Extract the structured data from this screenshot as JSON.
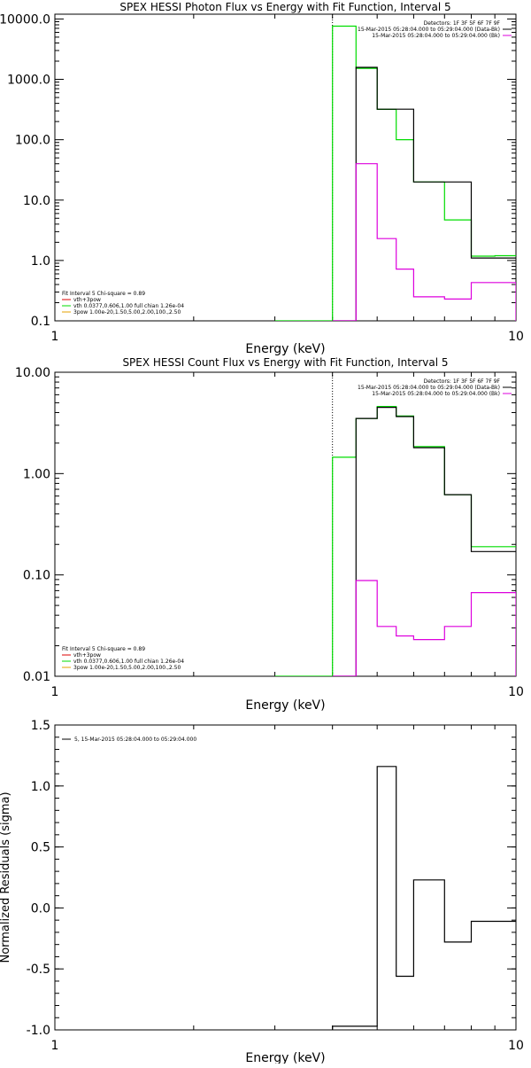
{
  "colors": {
    "black": "#000000",
    "green": "#00dd00",
    "magenta": "#dd00dd",
    "red": "#dd0000",
    "orange": "#e6a000"
  },
  "chart_data": [
    {
      "id": "photon",
      "type": "line",
      "title": "SPEX HESSI Photon Flux vs Energy with Fit Function, Interval 5",
      "xlabel": "Energy (keV)",
      "ylabel": "",
      "xscale": "log",
      "yscale": "log",
      "xlim": [
        1,
        10
      ],
      "ylim": [
        0.1,
        12000
      ],
      "xticks": [
        {
          "v": 1,
          "label": "1"
        },
        {
          "v": 10,
          "label": "10"
        }
      ],
      "yticks": [
        {
          "v": 0.1,
          "label": "0.1"
        },
        {
          "v": 1,
          "label": "1.0"
        },
        {
          "v": 10,
          "label": "10.0"
        },
        {
          "v": 100,
          "label": "100.0"
        },
        {
          "v": 1000,
          "label": "1000.0"
        },
        {
          "v": 10000,
          "label": "10000.0"
        }
      ],
      "vline": 4,
      "legend_top_right": [
        {
          "text": "Detectors: 1F 3F 5F 6F 7F 9F",
          "color": "",
          "line": false
        },
        {
          "text": "15-Mar-2015 05:28:04.000 to 05:29:04.000 (Data-Bk)",
          "color": "black",
          "line": true
        },
        {
          "text": "15-Mar-2015 05:28:04.000 to 05:29:04.000 (Bk)",
          "color": "magenta",
          "line": true
        }
      ],
      "legend_bottom_left": [
        {
          "text": "Fit Interval 5   Chi-square = 0.89",
          "color": "",
          "line": false
        },
        {
          "text": "vth+3pow",
          "color": "red",
          "line": true
        },
        {
          "text": "vth 0.0377,0.606,1.00  full chian 1.26e-04",
          "color": "green",
          "line": true
        },
        {
          "text": "3pow 1.00e-20,1.50,5.00,2.00,100.,2.50",
          "color": "orange",
          "line": true
        }
      ],
      "series": [
        {
          "color": "green",
          "x": [
            3,
            4,
            4.5,
            5,
            5.5,
            6,
            7,
            8,
            9,
            10
          ],
          "y": [
            0.1,
            7600,
            1520,
            318,
            100,
            20,
            4.7,
            1.18,
            1.2,
            1.2
          ]
        },
        {
          "color": "black",
          "x": [
            4,
            4.5,
            5,
            5.5,
            6,
            7,
            8,
            9,
            10
          ],
          "y": [
            0.1,
            1580,
            320,
            320,
            20,
            20,
            1.1,
            1.1,
            1.1
          ]
        },
        {
          "color": "magenta",
          "x": [
            4,
            4.5,
            5,
            5.5,
            6,
            7,
            8,
            9,
            10
          ],
          "y": [
            0.1,
            40,
            2.3,
            0.72,
            0.25,
            0.23,
            0.43,
            0.43,
            0.1
          ]
        }
      ]
    },
    {
      "id": "count",
      "type": "line",
      "title": "SPEX HESSI Count Flux vs Energy with Fit Function, Interval 5",
      "xlabel": "Energy (keV)",
      "ylabel": "",
      "xscale": "log",
      "yscale": "log",
      "xlim": [
        1,
        10
      ],
      "ylim": [
        0.01,
        10
      ],
      "xticks": [
        {
          "v": 1,
          "label": "1"
        },
        {
          "v": 10,
          "label": "10"
        }
      ],
      "yticks": [
        {
          "v": 0.01,
          "label": "0.01"
        },
        {
          "v": 0.1,
          "label": "0.10"
        },
        {
          "v": 1,
          "label": "1.00"
        },
        {
          "v": 10,
          "label": "10.00"
        }
      ],
      "vline": 4,
      "legend_top_right": [
        {
          "text": "Detectors: 1F 3F 5F 6F 7F 9F",
          "color": "",
          "line": false
        },
        {
          "text": "15-Mar-2015 05:28:04.000 to 05:29:04.000 (Data-Bk)",
          "color": "black",
          "line": true
        },
        {
          "text": "15-Mar-2015 05:28:04.000 to 05:29:04.000 (Bk)",
          "color": "magenta",
          "line": true
        }
      ],
      "legend_bottom_left": [
        {
          "text": "Fit Interval 5   Chi-square = 0.89",
          "color": "",
          "line": false
        },
        {
          "text": "vth+3pow",
          "color": "red",
          "line": true
        },
        {
          "text": "vth 0.0377,0.606,1.00  full chian 1.26e-04",
          "color": "green",
          "line": true
        },
        {
          "text": "3pow 1.00e-20,1.50,5.00,2.00,100.,2.50",
          "color": "orange",
          "line": true
        }
      ],
      "series": [
        {
          "color": "green",
          "x": [
            3,
            4,
            4.5,
            5,
            5.5,
            6,
            7,
            8,
            9,
            10
          ],
          "y": [
            0.01,
            1.45,
            3.5,
            4.6,
            3.7,
            1.85,
            0.62,
            0.19,
            0.19,
            0.19
          ]
        },
        {
          "color": "black",
          "x": [
            4,
            4.5,
            5,
            5.5,
            6,
            7,
            8,
            9,
            10
          ],
          "y": [
            0.01,
            3.5,
            4.5,
            3.65,
            1.8,
            0.62,
            0.17,
            0.17,
            0.17
          ]
        },
        {
          "color": "magenta",
          "x": [
            4,
            4.5,
            5,
            5.5,
            6,
            7,
            8,
            9,
            10
          ],
          "y": [
            0.01,
            0.088,
            0.031,
            0.025,
            0.023,
            0.031,
            0.067,
            0.067,
            0.01
          ]
        }
      ]
    },
    {
      "id": "residuals",
      "type": "line",
      "title": "",
      "xlabel": "Energy (keV)",
      "ylabel": "Normalized Residuals (sigma)",
      "xscale": "log",
      "yscale": "linear",
      "xlim": [
        1,
        10
      ],
      "ylim": [
        -1.0,
        1.5
      ],
      "xticks": [
        {
          "v": 1,
          "label": "1"
        },
        {
          "v": 10,
          "label": "10"
        }
      ],
      "yticks": [
        {
          "v": -1.0,
          "label": "-1.0"
        },
        {
          "v": -0.5,
          "label": "-0.5"
        },
        {
          "v": 0.0,
          "label": "0.0"
        },
        {
          "v": 0.5,
          "label": "0.5"
        },
        {
          "v": 1.0,
          "label": "1.0"
        },
        {
          "v": 1.5,
          "label": "1.5"
        }
      ],
      "vline": null,
      "legend_top_right": [],
      "legend_bottom_left": [],
      "legend_top_left": [
        {
          "text": "5, 15-Mar-2015 05:28:04.000 to 05:29:04.000",
          "color": "black",
          "line": true
        }
      ],
      "series": [
        {
          "color": "black",
          "x": [
            4,
            4.5,
            5,
            5.5,
            6,
            7,
            8,
            9,
            10
          ],
          "y": [
            -0.97,
            -0.97,
            1.16,
            -0.56,
            0.23,
            -0.28,
            -0.11,
            -0.11,
            -0.11
          ]
        }
      ]
    }
  ]
}
